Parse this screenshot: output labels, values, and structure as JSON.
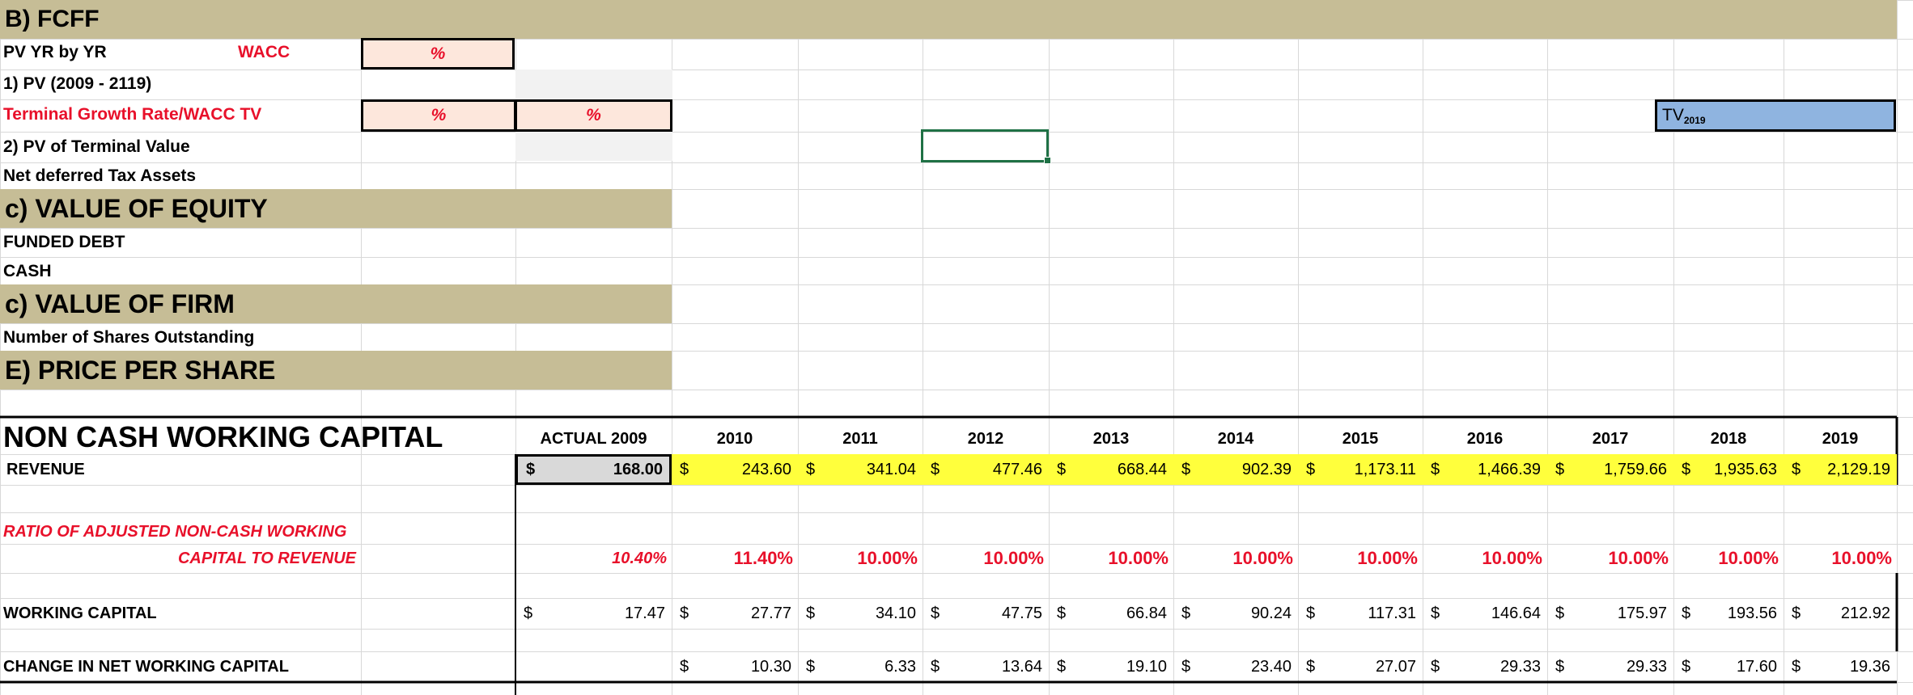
{
  "colors": {
    "section_band": "#c6bd96",
    "input_fill": "#fde7dc",
    "tv_fill": "#8fb4e0",
    "revenue_fill": "#ffff3c",
    "actual_fill": "#d9d9d9",
    "red_text": "#e8102a"
  },
  "fcff": {
    "title": "B) FCFF",
    "pv_label": "PV YR by  YR",
    "wacc_label": "WACC",
    "wacc_unit": "%",
    "pv_range_label": "1) PV (2009 - 2119)",
    "growth_label": "Terminal Growth Rate/WACC TV",
    "growth_unit": "%",
    "wacc_tv_unit": "%",
    "tv_label": "TV",
    "tv_sub": "2019",
    "pv_terminal_label": "2) PV of Terminal Value",
    "deferred_tax_label": "Net deferred Tax Assets"
  },
  "equity": {
    "title": "c) VALUE OF EQUITY",
    "funded_debt_label": "FUNDED DEBT",
    "cash_label": "CASH"
  },
  "firm": {
    "title": "c) VALUE OF FIRM",
    "shares_label": "Number of Shares Outstanding"
  },
  "price": {
    "title": "E) PRICE PER SHARE"
  },
  "ncwc": {
    "title": "NON CASH WORKING CAPITAL",
    "columns": [
      "ACTUAL 2009",
      "2010",
      "2011",
      "2012",
      "2013",
      "2014",
      "2015",
      "2016",
      "2017",
      "2018",
      "2019"
    ],
    "currency": "$",
    "revenue_label": "REVENUE",
    "revenue": [
      "168.00",
      "243.60",
      "341.04",
      "477.46",
      "668.44",
      "902.39",
      "1,173.11",
      "1,466.39",
      "1,759.66",
      "1,935.63",
      "2,129.19"
    ],
    "ratio_label_1": "RATIO OF ADJUSTED NON-CASH WORKING",
    "ratio_label_2": "CAPITAL TO REVENUE",
    "ratio": [
      "10.40%",
      "11.40%",
      "10.00%",
      "10.00%",
      "10.00%",
      "10.00%",
      "10.00%",
      "10.00%",
      "10.00%",
      "10.00%",
      "10.00%"
    ],
    "wc_label": "WORKING CAPITAL",
    "working_capital": [
      "17.47",
      "27.77",
      "34.10",
      "47.75",
      "66.84",
      "90.24",
      "117.31",
      "146.64",
      "175.97",
      "193.56",
      "212.92"
    ],
    "change_label": "CHANGE IN NET WORKING CAPITAL",
    "change": [
      "",
      "10.30",
      "6.33",
      "13.64",
      "19.10",
      "23.40",
      "27.07",
      "29.33",
      "29.33",
      "17.60",
      "19.36"
    ]
  }
}
